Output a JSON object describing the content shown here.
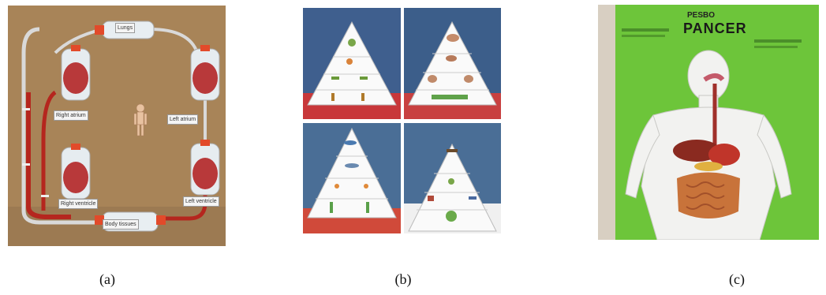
{
  "captions": {
    "a": "(a)",
    "b": "(b)",
    "c": "(c)"
  },
  "panel_a": {
    "labels": [
      "Lungs",
      "Right atrium",
      "Left atrium",
      "Right ventricle",
      "Left ventricle",
      "Body tissues"
    ]
  },
  "panel_b": {},
  "panel_c": {
    "brand": "PESBO",
    "title": "PANCER"
  },
  "colors": {
    "cardboard": "#a6825a",
    "tube_red": "#b5261e",
    "poster_green": "#6dc53a"
  }
}
